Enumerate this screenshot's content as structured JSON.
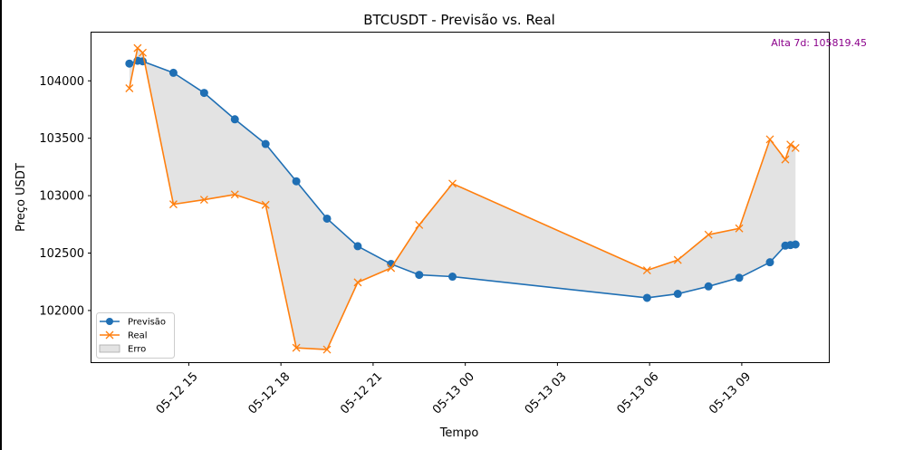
{
  "chart_data": {
    "type": "line",
    "title": "BTCUSDT - Previsão vs. Real",
    "xlabel": "Tempo",
    "ylabel": "Preço USDT",
    "xlim": [
      "2025-05-12 11:50",
      "2025-05-13 11:50"
    ],
    "ylim": [
      101550,
      104420
    ],
    "x_ticks": [
      {
        "value": "2025-05-12 15:00",
        "label": "05-12 15"
      },
      {
        "value": "2025-05-12 18:00",
        "label": "05-12 18"
      },
      {
        "value": "2025-05-12 21:00",
        "label": "05-12 21"
      },
      {
        "value": "2025-05-13 00:00",
        "label": "05-13 00"
      },
      {
        "value": "2025-05-13 03:00",
        "label": "05-13 03"
      },
      {
        "value": "2025-05-13 06:00",
        "label": "05-13 06"
      },
      {
        "value": "2025-05-13 09:00",
        "label": "05-13 09"
      }
    ],
    "y_ticks": [
      102000,
      102500,
      103000,
      103500,
      104000
    ],
    "grid": false,
    "legend_position": "lower-left",
    "annotation": {
      "text": "Alta 7d: 105819.45",
      "color": "#8b008b"
    },
    "series": [
      {
        "name": "Previsão",
        "color": "#1f6fb4",
        "marker": "circle",
        "points": [
          [
            "2025-05-12 13:04",
            104150
          ],
          [
            "2025-05-12 13:20",
            104175
          ],
          [
            "2025-05-12 13:30",
            104170
          ],
          [
            "2025-05-12 14:30",
            104070
          ],
          [
            "2025-05-12 15:30",
            103895
          ],
          [
            "2025-05-12 16:30",
            103665
          ],
          [
            "2025-05-12 17:30",
            103450
          ],
          [
            "2025-05-12 18:30",
            103125
          ],
          [
            "2025-05-12 19:30",
            102800
          ],
          [
            "2025-05-12 20:30",
            102560
          ],
          [
            "2025-05-12 21:35",
            102405
          ],
          [
            "2025-05-12 22:30",
            102310
          ],
          [
            "2025-05-12 23:35",
            102295
          ],
          [
            "2025-05-13 05:55",
            102110
          ],
          [
            "2025-05-13 06:55",
            102145
          ],
          [
            "2025-05-13 07:55",
            102210
          ],
          [
            "2025-05-13 08:55",
            102285
          ],
          [
            "2025-05-13 09:55",
            102420
          ],
          [
            "2025-05-13 10:25",
            102565
          ],
          [
            "2025-05-13 10:35",
            102570
          ],
          [
            "2025-05-13 10:45",
            102575
          ]
        ]
      },
      {
        "name": "Real",
        "color": "#ff7f0e",
        "marker": "x",
        "points": [
          [
            "2025-05-12 13:04",
            103935
          ],
          [
            "2025-05-12 13:20",
            104285
          ],
          [
            "2025-05-12 13:30",
            104245
          ],
          [
            "2025-05-12 14:30",
            102925
          ],
          [
            "2025-05-12 15:30",
            102965
          ],
          [
            "2025-05-12 16:30",
            103010
          ],
          [
            "2025-05-12 17:30",
            102920
          ],
          [
            "2025-05-12 18:30",
            101675
          ],
          [
            "2025-05-12 19:30",
            101660
          ],
          [
            "2025-05-12 20:30",
            102245
          ],
          [
            "2025-05-12 21:35",
            102370
          ],
          [
            "2025-05-12 22:30",
            102745
          ],
          [
            "2025-05-12 23:35",
            103105
          ],
          [
            "2025-05-13 05:55",
            102350
          ],
          [
            "2025-05-13 06:55",
            102440
          ],
          [
            "2025-05-13 07:55",
            102660
          ],
          [
            "2025-05-13 08:55",
            102715
          ],
          [
            "2025-05-13 09:55",
            103490
          ],
          [
            "2025-05-13 10:25",
            103315
          ],
          [
            "2025-05-13 10:35",
            103445
          ],
          [
            "2025-05-13 10:45",
            103415
          ]
        ]
      }
    ],
    "fill": {
      "name": "Erro",
      "color": "#c8c8c8",
      "between": [
        "Previsão",
        "Real"
      ]
    }
  }
}
